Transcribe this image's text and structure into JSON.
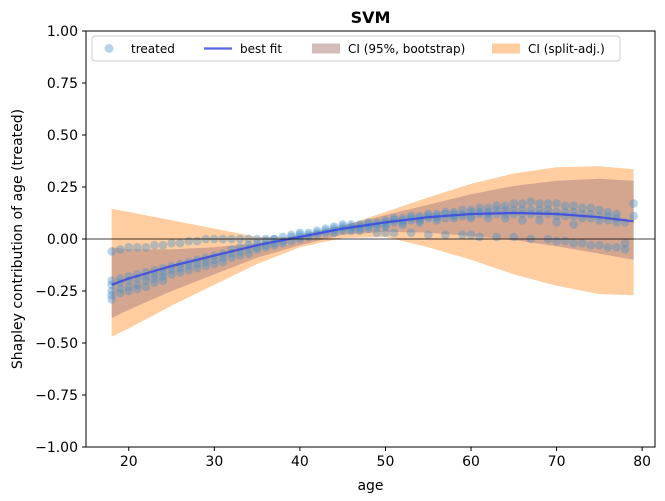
{
  "chart_data": {
    "type": "scatter",
    "title": "SVM",
    "xlabel": "age",
    "ylabel": "Shapley contribution of age (treated)",
    "xlim": [
      15,
      81.5
    ],
    "ylim": [
      -1.0,
      1.0
    ],
    "xticks": [
      "20",
      "30",
      "40",
      "50",
      "60",
      "70",
      "80"
    ],
    "yticks": [
      "-1.00",
      "-0.75",
      "-0.50",
      "-0.25",
      "0.00",
      "0.25",
      "0.50",
      "0.75",
      "1.00"
    ],
    "grid": false,
    "legend_position": "top",
    "legend": [
      "treated",
      "best fit",
      "CI (95%, bootstrap)",
      "CI (split-adj.)"
    ],
    "colors": {
      "points": "#4a90c8",
      "best_fit": "#3c46e0",
      "ci_bootstrap": "#b08582",
      "ci_split": "#ffc895",
      "zero_line": "#000000"
    },
    "series": [
      {
        "name": "best fit",
        "x": [
          18,
          20,
          25,
          30,
          35,
          40,
          45,
          50,
          55,
          60,
          65,
          70,
          75,
          79
        ],
        "y": [
          -0.22,
          -0.19,
          -0.13,
          -0.08,
          -0.03,
          0.01,
          0.05,
          0.08,
          0.105,
          0.12,
          0.125,
          0.12,
          0.105,
          0.085
        ]
      },
      {
        "name": "CI (95%, bootstrap)",
        "x": [
          18,
          20,
          25,
          30,
          35,
          40,
          45,
          50,
          55,
          60,
          65,
          70,
          75,
          79
        ],
        "upper": [
          -0.04,
          -0.05,
          -0.05,
          -0.04,
          -0.02,
          0.02,
          0.065,
          0.115,
          0.165,
          0.215,
          0.255,
          0.28,
          0.29,
          0.28
        ],
        "lower": [
          -0.38,
          -0.34,
          -0.25,
          -0.17,
          -0.09,
          -0.03,
          0.02,
          0.035,
          0.03,
          0.015,
          -0.005,
          -0.035,
          -0.07,
          -0.1
        ]
      },
      {
        "name": "CI (split-adj.)",
        "x": [
          18,
          20,
          25,
          30,
          35,
          40,
          45,
          50,
          55,
          60,
          65,
          70,
          75,
          79
        ],
        "upper": [
          0.145,
          0.13,
          0.09,
          0.05,
          0.01,
          0.01,
          0.06,
          0.13,
          0.2,
          0.265,
          0.315,
          0.345,
          0.35,
          0.335
        ],
        "lower": [
          -0.47,
          -0.43,
          -0.32,
          -0.22,
          -0.12,
          -0.04,
          0.005,
          0.01,
          -0.04,
          -0.1,
          -0.17,
          -0.225,
          -0.265,
          -0.27
        ]
      },
      {
        "name": "treated",
        "points": [
          [
            18,
            -0.06
          ],
          [
            18,
            -0.2
          ],
          [
            18,
            -0.22
          ],
          [
            18,
            -0.25
          ],
          [
            18,
            -0.29
          ],
          [
            18,
            -0.27
          ],
          [
            19,
            -0.05
          ],
          [
            19,
            -0.19
          ],
          [
            19,
            -0.21
          ],
          [
            19,
            -0.24
          ],
          [
            19,
            -0.26
          ],
          [
            20,
            -0.04
          ],
          [
            20,
            -0.18
          ],
          [
            20,
            -0.2
          ],
          [
            20,
            -0.23
          ],
          [
            20,
            -0.25
          ],
          [
            21,
            -0.04
          ],
          [
            21,
            -0.17
          ],
          [
            21,
            -0.19
          ],
          [
            21,
            -0.22
          ],
          [
            21,
            -0.24
          ],
          [
            22,
            -0.04
          ],
          [
            22,
            -0.16
          ],
          [
            22,
            -0.18
          ],
          [
            22,
            -0.2
          ],
          [
            22,
            -0.23
          ],
          [
            23,
            -0.03
          ],
          [
            23,
            -0.15
          ],
          [
            23,
            -0.17
          ],
          [
            23,
            -0.19
          ],
          [
            23,
            -0.21
          ],
          [
            24,
            -0.03
          ],
          [
            24,
            -0.14
          ],
          [
            24,
            -0.16
          ],
          [
            24,
            -0.18
          ],
          [
            24,
            -0.2
          ],
          [
            25,
            -0.02
          ],
          [
            25,
            -0.13
          ],
          [
            25,
            -0.15
          ],
          [
            25,
            -0.17
          ],
          [
            26,
            -0.02
          ],
          [
            26,
            -0.12
          ],
          [
            26,
            -0.14
          ],
          [
            26,
            -0.16
          ],
          [
            27,
            -0.01
          ],
          [
            27,
            -0.11
          ],
          [
            27,
            -0.13
          ],
          [
            27,
            -0.15
          ],
          [
            28,
            -0.01
          ],
          [
            28,
            -0.1
          ],
          [
            28,
            -0.12
          ],
          [
            28,
            -0.14
          ],
          [
            29,
            0.0
          ],
          [
            29,
            -0.09
          ],
          [
            29,
            -0.11
          ],
          [
            29,
            -0.13
          ],
          [
            30,
            0.0
          ],
          [
            30,
            -0.08
          ],
          [
            30,
            -0.1
          ],
          [
            30,
            -0.12
          ],
          [
            31,
            0.0
          ],
          [
            31,
            -0.07
          ],
          [
            31,
            -0.09
          ],
          [
            31,
            -0.11
          ],
          [
            32,
            0.0
          ],
          [
            32,
            -0.05
          ],
          [
            32,
            -0.07
          ],
          [
            32,
            -0.09
          ],
          [
            33,
            0.0
          ],
          [
            33,
            -0.04
          ],
          [
            33,
            -0.06
          ],
          [
            33,
            -0.08
          ],
          [
            34,
            0.0
          ],
          [
            34,
            -0.03
          ],
          [
            34,
            -0.05
          ],
          [
            34,
            -0.07
          ],
          [
            35,
            0.0
          ],
          [
            35,
            -0.02
          ],
          [
            35,
            -0.04
          ],
          [
            35,
            -0.05
          ],
          [
            36,
            0.0
          ],
          [
            36,
            -0.01
          ],
          [
            36,
            -0.03
          ],
          [
            36,
            -0.04
          ],
          [
            37,
            0.0
          ],
          [
            37,
            0.0
          ],
          [
            37,
            -0.02
          ],
          [
            37,
            -0.03
          ],
          [
            38,
            0.01
          ],
          [
            38,
            -0.01
          ],
          [
            38,
            -0.02
          ],
          [
            39,
            0.01
          ],
          [
            39,
            0.02
          ],
          [
            39,
            -0.01
          ],
          [
            40,
            0.02
          ],
          [
            40,
            0.01
          ],
          [
            40,
            0.0
          ],
          [
            40,
            0.03
          ],
          [
            41,
            0.02
          ],
          [
            41,
            0.03
          ],
          [
            41,
            0.01
          ],
          [
            42,
            0.03
          ],
          [
            42,
            0.04
          ],
          [
            42,
            0.02
          ],
          [
            43,
            0.03
          ],
          [
            43,
            0.04
          ],
          [
            43,
            0.05
          ],
          [
            44,
            0.04
          ],
          [
            44,
            0.05
          ],
          [
            44,
            0.03
          ],
          [
            44,
            0.06
          ],
          [
            45,
            0.05
          ],
          [
            45,
            0.06
          ],
          [
            45,
            0.04
          ],
          [
            45,
            0.07
          ],
          [
            46,
            0.05
          ],
          [
            46,
            0.06
          ],
          [
            46,
            0.07
          ],
          [
            46,
            0.04
          ],
          [
            47,
            0.06
          ],
          [
            47,
            0.07
          ],
          [
            47,
            0.05
          ],
          [
            47,
            0.04
          ],
          [
            48,
            0.06
          ],
          [
            48,
            0.07
          ],
          [
            48,
            0.08
          ],
          [
            48,
            0.05
          ],
          [
            49,
            0.07
          ],
          [
            49,
            0.08
          ],
          [
            49,
            0.06
          ],
          [
            49,
            0.03
          ],
          [
            50,
            0.07
          ],
          [
            50,
            0.08
          ],
          [
            50,
            0.09
          ],
          [
            50,
            0.06
          ],
          [
            50,
            0.03
          ],
          [
            51,
            0.08
          ],
          [
            51,
            0.09
          ],
          [
            51,
            0.1
          ],
          [
            51,
            0.03
          ],
          [
            52,
            0.08
          ],
          [
            52,
            0.09
          ],
          [
            52,
            0.1
          ],
          [
            52,
            0.07
          ],
          [
            53,
            0.09
          ],
          [
            53,
            0.1
          ],
          [
            53,
            0.11
          ],
          [
            53,
            0.03
          ],
          [
            54,
            0.09
          ],
          [
            54,
            0.1
          ],
          [
            54,
            0.11
          ],
          [
            54,
            0.08
          ],
          [
            55,
            0.1
          ],
          [
            55,
            0.11
          ],
          [
            55,
            0.12
          ],
          [
            55,
            0.02
          ],
          [
            56,
            0.1
          ],
          [
            56,
            0.11
          ],
          [
            56,
            0.12
          ],
          [
            56,
            0.09
          ],
          [
            57,
            0.1
          ],
          [
            57,
            0.12
          ],
          [
            57,
            0.13
          ],
          [
            57,
            0.02
          ],
          [
            58,
            0.11
          ],
          [
            58,
            0.12
          ],
          [
            58,
            0.13
          ],
          [
            58,
            0.1
          ],
          [
            59,
            0.11
          ],
          [
            59,
            0.12
          ],
          [
            59,
            0.14
          ],
          [
            59,
            0.02
          ],
          [
            60,
            0.11
          ],
          [
            60,
            0.13
          ],
          [
            60,
            0.14
          ],
          [
            60,
            0.1
          ],
          [
            60,
            0.02
          ],
          [
            61,
            0.12
          ],
          [
            61,
            0.13
          ],
          [
            61,
            0.15
          ],
          [
            61,
            0.01
          ],
          [
            62,
            0.12
          ],
          [
            62,
            0.13
          ],
          [
            62,
            0.15
          ],
          [
            62,
            0.1
          ],
          [
            63,
            0.12
          ],
          [
            63,
            0.14
          ],
          [
            63,
            0.16
          ],
          [
            63,
            0.01
          ],
          [
            64,
            0.12
          ],
          [
            64,
            0.14
          ],
          [
            64,
            0.16
          ],
          [
            64,
            0.1
          ],
          [
            65,
            0.12
          ],
          [
            65,
            0.14
          ],
          [
            65,
            0.17
          ],
          [
            65,
            0.01
          ],
          [
            66,
            0.12
          ],
          [
            66,
            0.14
          ],
          [
            66,
            0.17
          ],
          [
            66,
            0.09
          ],
          [
            67,
            0.12
          ],
          [
            67,
            0.14
          ],
          [
            67,
            0.18
          ],
          [
            67,
            0.0
          ],
          [
            68,
            0.12
          ],
          [
            68,
            0.14
          ],
          [
            68,
            0.17
          ],
          [
            68,
            0.09
          ],
          [
            69,
            0.12
          ],
          [
            69,
            0.14
          ],
          [
            69,
            0.17
          ],
          [
            69,
            0.0
          ],
          [
            70,
            0.11
          ],
          [
            70,
            0.13
          ],
          [
            70,
            0.17
          ],
          [
            70,
            0.08
          ],
          [
            70,
            -0.01
          ],
          [
            71,
            0.11
          ],
          [
            71,
            0.13
          ],
          [
            71,
            0.16
          ],
          [
            71,
            -0.01
          ],
          [
            72,
            0.11
          ],
          [
            72,
            0.13
          ],
          [
            72,
            0.16
          ],
          [
            72,
            0.07
          ],
          [
            72,
            -0.02
          ],
          [
            73,
            0.1
          ],
          [
            73,
            0.12
          ],
          [
            73,
            0.15
          ],
          [
            73,
            -0.02
          ],
          [
            74,
            0.1
          ],
          [
            74,
            0.12
          ],
          [
            74,
            0.15
          ],
          [
            74,
            -0.03
          ],
          [
            75,
            0.09
          ],
          [
            75,
            0.11
          ],
          [
            75,
            0.14
          ],
          [
            75,
            -0.03
          ],
          [
            76,
            0.09
          ],
          [
            76,
            0.11
          ],
          [
            76,
            0.13
          ],
          [
            76,
            -0.04
          ],
          [
            77,
            0.08
          ],
          [
            77,
            0.1
          ],
          [
            77,
            0.12
          ],
          [
            77,
            -0.04
          ],
          [
            78,
            0.08
          ],
          [
            78,
            -0.05
          ],
          [
            78,
            -0.02
          ],
          [
            79,
            0.17
          ],
          [
            79,
            0.11
          ]
        ]
      }
    ]
  }
}
